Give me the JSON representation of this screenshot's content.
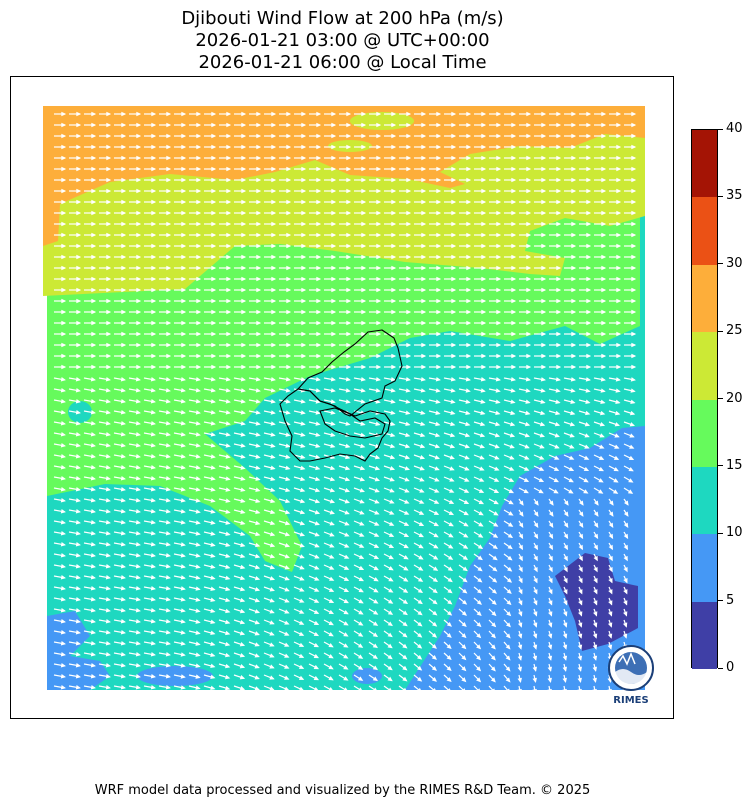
{
  "title": {
    "line1": "Djibouti Wind Flow at 200 hPa (m/s)",
    "line2": "2026-01-21 03:00 @ UTC+00:00",
    "line3": "2026-01-21 06:00 @ Local Time"
  },
  "colorbar": {
    "levels": [
      0,
      5,
      10,
      15,
      20,
      25,
      30,
      35,
      40
    ],
    "labels": [
      "0",
      "5",
      "10",
      "15",
      "20",
      "25",
      "30",
      "35",
      "40"
    ],
    "colors": [
      "#3f3fa6",
      "#4598f5",
      "#1ed8c0",
      "#66fa5c",
      "#cce935",
      "#fdae3a",
      "#eb5115",
      "#a41405"
    ]
  },
  "map": {
    "field": "wind speed shaded with white wind-direction arrows",
    "country_outline": "Djibouti",
    "colors": {
      "orange": "#fdae3a",
      "yellow": "#cce935",
      "green": "#66fa5c",
      "teal": "#1ed8c0",
      "blue": "#4598f5",
      "indigo": "#3f3fa6",
      "arrow": "#ffffff",
      "border": "#000000"
    }
  },
  "logo": {
    "text": "RIMES"
  },
  "footer": "WRF model data processed and visualized by the RIMES R&D Team. © 2025"
}
